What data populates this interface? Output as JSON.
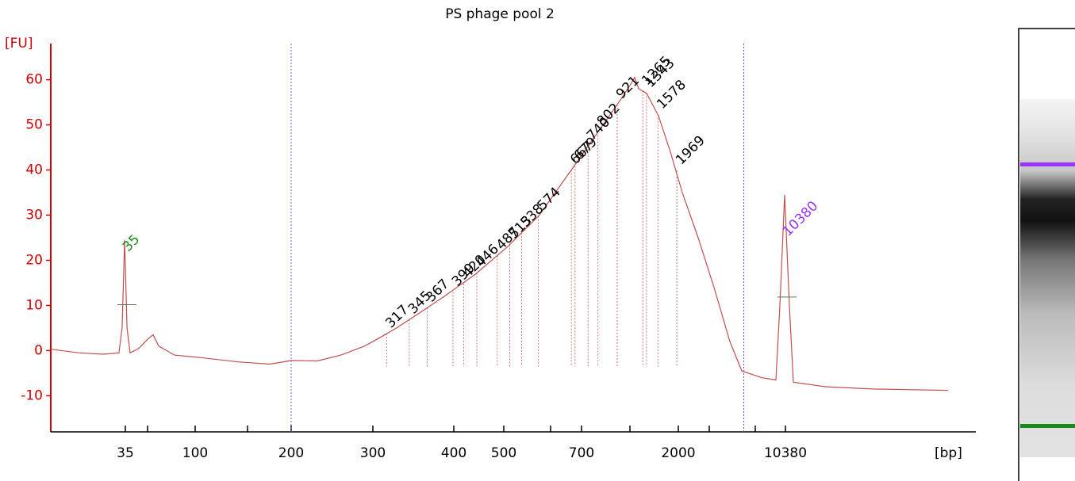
{
  "chart_data": {
    "type": "line",
    "title": "PS phage pool  2",
    "ylabel": "[FU]",
    "xlabel": "[bp]",
    "color": "#c0504d",
    "axis_color": "#cc0000",
    "ylim": [
      -18,
      68
    ],
    "yticks": [
      -10,
      0,
      10,
      20,
      30,
      40,
      50,
      60
    ],
    "xlim": [
      5,
      15000
    ],
    "xticks": [
      35,
      {
        "value": 50,
        "label": null
      },
      100,
      {
        "value": 150,
        "label": null
      },
      200,
      300,
      400,
      500,
      {
        "value": 600,
        "label": null
      },
      700,
      {
        "value": 1000,
        "label": null
      },
      2000,
      {
        "value": 3000,
        "label": null
      },
      {
        "value": 7000,
        "label": null
      },
      10380
    ],
    "series": [
      {
        "name": null,
        "color": "#c0504d",
        "x": [
          5,
          16.5,
          26.1,
          32.4,
          33.7,
          34.7,
          36.1,
          38.2,
          44.1,
          50,
          55.8,
          61.7,
          78.3,
          103,
          140.9,
          175.5,
          200,
          232,
          261,
          290,
          310,
          329,
          359,
          388,
          444,
          508,
          576,
          615,
          667,
          734,
          833,
          931,
          1016,
          1098,
          1180,
          1344,
          1590,
          1836,
          2128,
          2641,
          3414,
          4793,
          5828,
          7712,
          9313,
          9758,
          10291,
          10493,
          10605,
          11507,
          12859,
          15000
        ],
        "values": [
          0.3,
          -0.5,
          -0.8,
          -0.5,
          5,
          24.5,
          5,
          -0.5,
          0.5,
          2.5,
          3.5,
          1,
          -1,
          -1.5,
          -2.5,
          -3,
          -2.2,
          -2.3,
          -1,
          1,
          3,
          5,
          8.5,
          12,
          17,
          23,
          30,
          35,
          40,
          45,
          50,
          55,
          59,
          60.5,
          58,
          57,
          52,
          44,
          35,
          25,
          14,
          2,
          -4.5,
          -6,
          -6.5,
          10,
          34.5,
          10,
          -7,
          -8,
          -8.5,
          -8.8
        ]
      }
    ],
    "peak_labels": [
      317,
      345,
      367,
      399,
      420,
      446,
      487,
      513,
      538,
      574,
      667,
      679,
      740,
      802,
      921,
      1265,
      1343,
      1578,
      1969
    ],
    "lower_marker": {
      "value": 35,
      "color": "#1a8a1a"
    },
    "upper_marker": {
      "value": 10380,
      "color": "#9933ff"
    },
    "region": [
      200,
      6000
    ],
    "region_color": "#6666cc"
  }
}
